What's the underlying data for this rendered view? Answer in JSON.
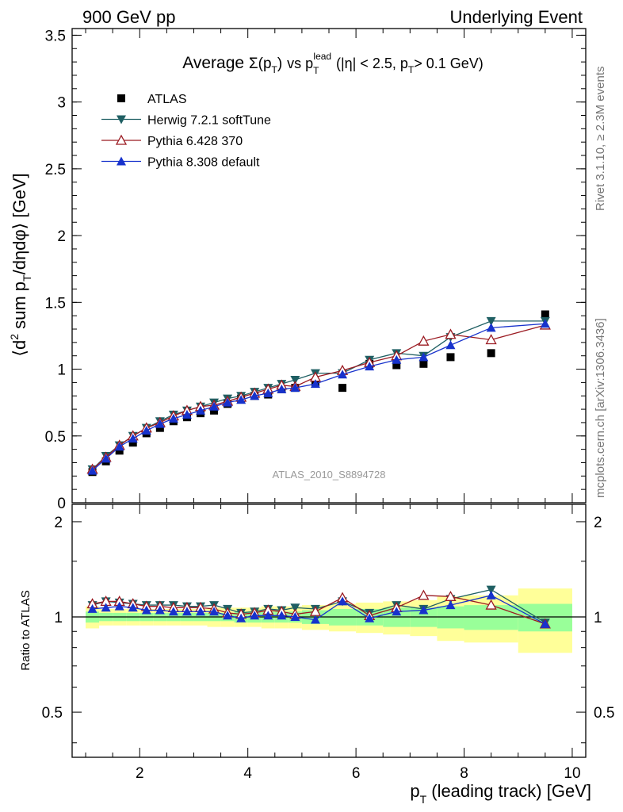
{
  "header": {
    "left": "900 GeV pp",
    "right": "Underlying Event"
  },
  "side_notes": {
    "rivet": "Rivet 3.1.10, ≥ 2.3M events",
    "mcplots": "mcplots.cern.ch [arXiv:1306.3436]"
  },
  "watermark": "ATLAS_2010_S8894728",
  "colors": {
    "data": "#000000",
    "herwig": "#1f5f63",
    "pythia6": "#9b1b22",
    "pythia8": "#1732cc",
    "band_inner": "#99ff99",
    "band_outer": "#ffff99"
  },
  "chart_data": [
    {
      "type": "line",
      "panel": "main",
      "title": {
        "average": "Average",
        "sigma": "Σ(p",
        "sigma_sub": "T",
        "sigma_close": ")",
        "vs": "vs p",
        "vs_sub": "T",
        "vs_sup": "lead",
        "cuts_a": "(|η| < 2.5, p",
        "cuts_sub": "T",
        "cuts_b": "> 0.1 GeV)"
      },
      "ylabel": {
        "a": "⟨d",
        "sup": "2",
        "b": " sum p",
        "sub": "T",
        "c": "/dηdφ⟩ [GeV]"
      },
      "xlim": [
        0.75,
        10.25
      ],
      "ylim": [
        0,
        3.55
      ],
      "yticks": [
        0,
        0.5,
        1,
        1.5,
        2,
        2.5,
        3,
        3.5
      ],
      "ytick_labels": [
        "0",
        "0.5",
        "1",
        "1.5",
        "2",
        "2.5",
        "3",
        "3.5"
      ],
      "legend_position": "top-left",
      "legend": [
        "ATLAS",
        "Herwig 7.2.1 softTune",
        "Pythia 6.428 370",
        "Pythia 8.308 default"
      ],
      "x": [
        1.125,
        1.375,
        1.625,
        1.875,
        2.125,
        2.375,
        2.625,
        2.875,
        3.125,
        3.375,
        3.625,
        3.875,
        4.125,
        4.375,
        4.625,
        4.875,
        5.25,
        5.75,
        6.25,
        6.75,
        7.25,
        7.75,
        8.5,
        9.5
      ],
      "series": [
        {
          "name": "ATLAS",
          "marker": "square",
          "values": [
            0.23,
            0.31,
            0.39,
            0.45,
            0.52,
            0.56,
            0.61,
            0.64,
            0.67,
            0.69,
            0.74,
            0.78,
            0.8,
            0.81,
            0.85,
            0.86,
            0.9,
            0.86,
            1.04,
            1.03,
            1.04,
            1.09,
            1.12,
            1.41
          ]
        },
        {
          "name": "Herwig 7.2.1 softTune",
          "marker": "triangle-down",
          "values": [
            0.25,
            0.35,
            0.43,
            0.5,
            0.56,
            0.61,
            0.66,
            0.69,
            0.72,
            0.75,
            0.78,
            0.8,
            0.83,
            0.86,
            0.89,
            0.92,
            0.97,
            0.97,
            1.07,
            1.12,
            1.1,
            1.24,
            1.36,
            1.36
          ]
        },
        {
          "name": "Pythia 6.428 370",
          "marker": "triangle-up-open",
          "values": [
            0.25,
            0.34,
            0.43,
            0.5,
            0.56,
            0.6,
            0.65,
            0.69,
            0.72,
            0.73,
            0.76,
            0.79,
            0.82,
            0.85,
            0.88,
            0.87,
            0.94,
            0.99,
            1.05,
            1.1,
            1.21,
            1.26,
            1.22,
            1.33
          ]
        },
        {
          "name": "Pythia 8.308 default",
          "marker": "triangle-up",
          "values": [
            0.24,
            0.33,
            0.42,
            0.48,
            0.54,
            0.59,
            0.63,
            0.66,
            0.69,
            0.72,
            0.75,
            0.77,
            0.8,
            0.82,
            0.85,
            0.86,
            0.89,
            0.96,
            1.02,
            1.07,
            1.09,
            1.18,
            1.31,
            1.34
          ]
        }
      ]
    },
    {
      "type": "line",
      "panel": "ratio",
      "ylabel": "Ratio to ATLAS",
      "xlabel": {
        "a": "p",
        "sub": "T",
        "b": " (leading track) [GeV]"
      },
      "xlim": [
        0.75,
        10.25
      ],
      "ylim": [
        0.36,
        2.27
      ],
      "yticks": [
        0.5,
        1,
        2
      ],
      "ytick_labels": [
        "0.5",
        "1",
        "2"
      ],
      "xticks": [
        2,
        4,
        6,
        8,
        10
      ],
      "xtick_labels": [
        "2",
        "4",
        "6",
        "8",
        "10"
      ],
      "bands": {
        "edges": [
          1.0,
          1.25,
          1.5,
          1.75,
          2.0,
          2.25,
          2.5,
          2.75,
          3.0,
          3.25,
          3.5,
          3.75,
          4.0,
          4.25,
          4.5,
          4.75,
          5.0,
          5.5,
          6.0,
          6.5,
          7.0,
          7.5,
          8.0,
          9.0,
          10.0
        ],
        "inner": [
          0.04,
          0.03,
          0.03,
          0.03,
          0.03,
          0.03,
          0.03,
          0.03,
          0.03,
          0.03,
          0.03,
          0.04,
          0.04,
          0.04,
          0.04,
          0.04,
          0.05,
          0.06,
          0.06,
          0.07,
          0.07,
          0.08,
          0.09,
          0.1
        ],
        "outer": [
          0.08,
          0.06,
          0.06,
          0.06,
          0.06,
          0.06,
          0.06,
          0.06,
          0.06,
          0.07,
          0.07,
          0.07,
          0.07,
          0.08,
          0.08,
          0.08,
          0.09,
          0.1,
          0.11,
          0.12,
          0.13,
          0.16,
          0.17,
          0.23
        ]
      },
      "series": [
        {
          "name": "Herwig 7.2.1 softTune",
          "marker": "triangle-down",
          "values": [
            1.09,
            1.12,
            1.11,
            1.1,
            1.09,
            1.09,
            1.09,
            1.08,
            1.08,
            1.09,
            1.06,
            1.03,
            1.04,
            1.06,
            1.05,
            1.07,
            1.06,
            1.12,
            1.03,
            1.09,
            1.06,
            1.14,
            1.22,
            0.96
          ]
        },
        {
          "name": "Pythia 6.428 370",
          "marker": "triangle-up-open",
          "values": [
            1.1,
            1.12,
            1.12,
            1.1,
            1.08,
            1.08,
            1.07,
            1.07,
            1.07,
            1.06,
            1.03,
            1.02,
            1.03,
            1.05,
            1.04,
            1.02,
            1.04,
            1.15,
            1.01,
            1.07,
            1.17,
            1.16,
            1.09,
            0.95
          ]
        },
        {
          "name": "Pythia 8.308 default",
          "marker": "triangle-up",
          "values": [
            1.06,
            1.07,
            1.08,
            1.07,
            1.05,
            1.05,
            1.04,
            1.04,
            1.04,
            1.04,
            1.01,
            0.99,
            1.01,
            1.01,
            1.01,
            1.0,
            0.98,
            1.12,
            0.99,
            1.04,
            1.05,
            1.09,
            1.17,
            0.95
          ]
        }
      ]
    }
  ]
}
